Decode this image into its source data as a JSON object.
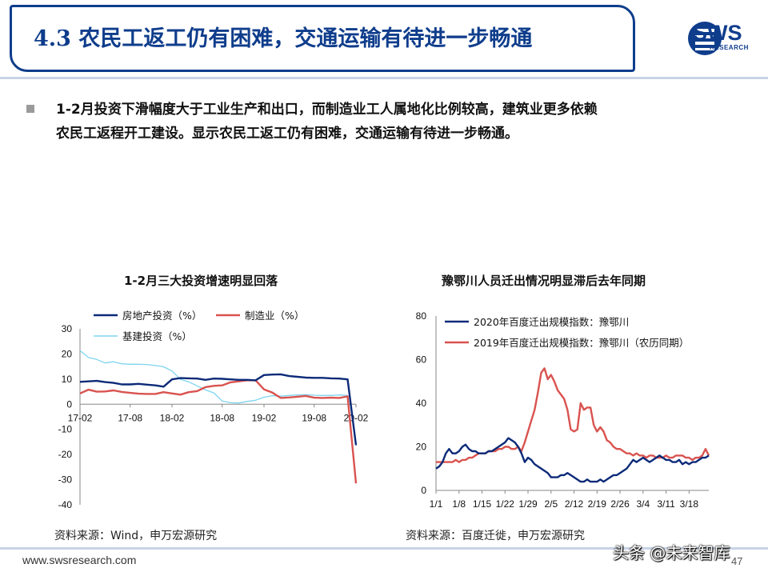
{
  "header": {
    "title": "4.3 农民工返工仍有困难，交通运输有待进一步畅通",
    "logo_text": "SWS",
    "logo_sub": "RESEARCH"
  },
  "summary": {
    "line1": "1-2月投资下滑幅度大于工业生产和出口，而制造业工人属地化比例较高，建筑业更多依赖",
    "line2": "农民工返程开工建设。显示农民工返工仍有困难，交通运输有待进一步畅通。"
  },
  "footer": {
    "url": "www.swsresearch.com",
    "page": "47",
    "watermark": "头条 @未来智库"
  },
  "colors": {
    "brand": "#0f3d8c",
    "series_navy": "#0b2a78",
    "series_red": "#d9534f",
    "series_lightblue": "#7fd4ef"
  },
  "chart_data": [
    {
      "type": "line",
      "title": "1-2月三大投资增速明显回落",
      "source": "资料来源：Wind，申万宏源研究",
      "x_tick_labels": [
        "17-02",
        "17-08",
        "18-02",
        "18-08",
        "19-02",
        "19-08",
        "20-02"
      ],
      "x_months": [
        "17-02",
        "17-03",
        "17-04",
        "17-05",
        "17-06",
        "17-07",
        "17-08",
        "17-09",
        "17-10",
        "17-11",
        "17-12",
        "18-02",
        "18-03",
        "18-04",
        "18-05",
        "18-06",
        "18-07",
        "18-08",
        "18-09",
        "18-10",
        "18-11",
        "18-12",
        "19-02",
        "19-03",
        "19-04",
        "19-05",
        "19-06",
        "19-07",
        "19-08",
        "19-09",
        "19-10",
        "19-11",
        "19-12",
        "20-02"
      ],
      "ylim": [
        -40,
        30
      ],
      "yticks": [
        -40,
        -30,
        -20,
        -10,
        0,
        10,
        20,
        30
      ],
      "legend": "top",
      "series": [
        {
          "name": "房地产投资（%）",
          "color": "#0b2a78",
          "values": [
            8.9,
            9.1,
            9.3,
            8.8,
            8.5,
            7.9,
            7.9,
            8.1,
            7.8,
            7.5,
            7.0,
            9.9,
            10.4,
            10.3,
            10.2,
            9.7,
            10.2,
            10.1,
            9.9,
            9.7,
            9.7,
            9.5,
            11.6,
            11.8,
            11.9,
            11.2,
            10.9,
            10.6,
            10.5,
            10.5,
            10.3,
            10.2,
            9.9,
            -16.3
          ]
        },
        {
          "name": "制造业（%）",
          "color": "#d9534f",
          "values": [
            4.3,
            5.8,
            5.0,
            5.1,
            5.5,
            4.9,
            4.5,
            4.2,
            4.1,
            4.1,
            4.8,
            4.3,
            3.8,
            4.8,
            5.2,
            6.8,
            7.3,
            7.5,
            8.7,
            9.1,
            9.5,
            9.5,
            5.9,
            4.6,
            2.5,
            2.7,
            3.0,
            3.3,
            2.6,
            2.5,
            2.6,
            2.5,
            3.1,
            -31.5
          ]
        },
        {
          "name": "基建投资（%）",
          "color": "#7fd4ef",
          "values": [
            21.3,
            18.6,
            17.8,
            16.4,
            16.9,
            16.1,
            15.9,
            15.9,
            15.8,
            15.4,
            14.9,
            13.2,
            9.9,
            8.9,
            7.3,
            5.7,
            4.5,
            1.3,
            0.6,
            0.5,
            1.1,
            1.6,
            2.8,
            3.4,
            3.2,
            3.5,
            3.7,
            3.8,
            3.6,
            3.5,
            3.5,
            3.7,
            3.5,
            -30.3
          ]
        }
      ]
    },
    {
      "type": "line",
      "title": "豫鄂川人员迁出情况明显滞后去年同期",
      "source": "资料来源：百度迁徙，申万宏源研究",
      "x_tick_labels": [
        "1/1",
        "1/8",
        "1/15",
        "1/22",
        "1/29",
        "2/5",
        "2/12",
        "2/19",
        "2/26",
        "3/4",
        "3/11",
        "3/18"
      ],
      "ylim": [
        0,
        80
      ],
      "yticks": [
        0,
        20,
        40,
        60,
        80
      ],
      "legend": "top",
      "series": [
        {
          "name": "2020年百度迁出规模指数：豫鄂川",
          "color": "#0b2a78",
          "values": [
            10,
            11,
            13,
            17,
            19,
            17,
            17,
            18,
            20,
            21,
            19,
            18,
            18,
            17,
            17,
            17,
            18,
            18,
            19,
            20,
            21,
            22,
            24,
            23,
            22,
            20,
            17,
            13,
            15,
            14,
            12,
            11,
            10,
            9,
            8,
            6,
            6,
            6,
            7,
            7,
            8,
            7,
            6,
            5,
            4,
            4,
            5,
            4,
            4,
            4,
            5,
            4,
            5,
            6,
            7,
            7,
            8,
            9,
            10,
            12,
            14,
            13,
            14,
            15,
            14,
            13,
            14,
            15,
            16,
            15,
            14,
            14,
            13,
            13,
            14,
            12,
            13,
            12,
            13,
            13,
            14,
            15,
            15,
            16
          ]
        },
        {
          "name": "2019年百度迁出规模指数：豫鄂川（农历同期）",
          "color": "#d9534f",
          "values": [
            13,
            13,
            13,
            13,
            13,
            13,
            14,
            13,
            14,
            14,
            15,
            15,
            16,
            17,
            17,
            17,
            18,
            18,
            18,
            19,
            19,
            20,
            20,
            19,
            19,
            20,
            18,
            22,
            27,
            32,
            37,
            45,
            54,
            56,
            51,
            53,
            50,
            46,
            44,
            42,
            37,
            28,
            27,
            28,
            40,
            37,
            38,
            38,
            30,
            27,
            29,
            27,
            23,
            22,
            20,
            19,
            19,
            18,
            17,
            17,
            16,
            17,
            16,
            16,
            15,
            16,
            16,
            15,
            15,
            15,
            16,
            15,
            15,
            16,
            16,
            16,
            15,
            15,
            14,
            15,
            15,
            16,
            19,
            16
          ]
        }
      ]
    }
  ]
}
